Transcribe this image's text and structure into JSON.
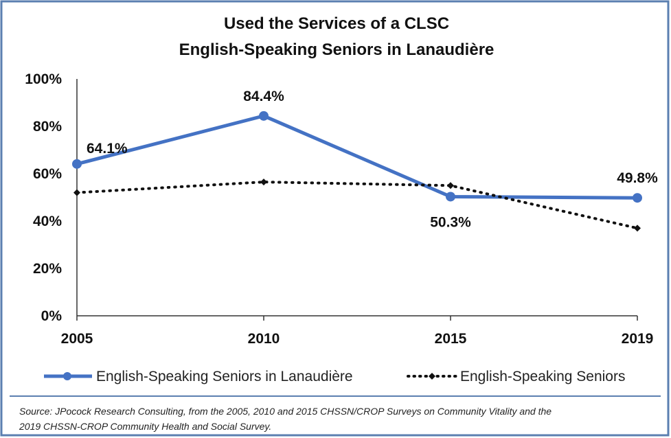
{
  "chart_data": {
    "type": "line",
    "title": "Used the Services of a CLSC",
    "subtitle": "English-Speaking Seniors in Lanaudière",
    "categories": [
      "2005",
      "2010",
      "2015",
      "2019"
    ],
    "ylim": [
      0,
      100
    ],
    "yticks": [
      "0%",
      "20%",
      "40%",
      "60%",
      "80%",
      "100%"
    ],
    "grid": false,
    "legend_position": "bottom",
    "series": [
      {
        "name": "English-Speaking Seniors in Lanaudière",
        "values": [
          64.1,
          84.4,
          50.3,
          49.8
        ],
        "labels": [
          "64.1%",
          "84.4%",
          "50.3%",
          "49.8%"
        ],
        "color": "#4472C4",
        "style": "solid"
      },
      {
        "name": "English-Speaking Seniors",
        "values": [
          52,
          56.5,
          55,
          37
        ],
        "color": "#111111",
        "style": "dotted"
      }
    ]
  },
  "source_note": {
    "line1": "Source: JPocock Research Consulting, from the 2005, 2010  and 2015  CHSSN/CROP Surveys on Community Vitality and the",
    "line2": "2019  CHSSN-CROP Community Health and Social Survey."
  },
  "colors": {
    "frame_border": "#5B7FB0",
    "axis": "#333333"
  }
}
